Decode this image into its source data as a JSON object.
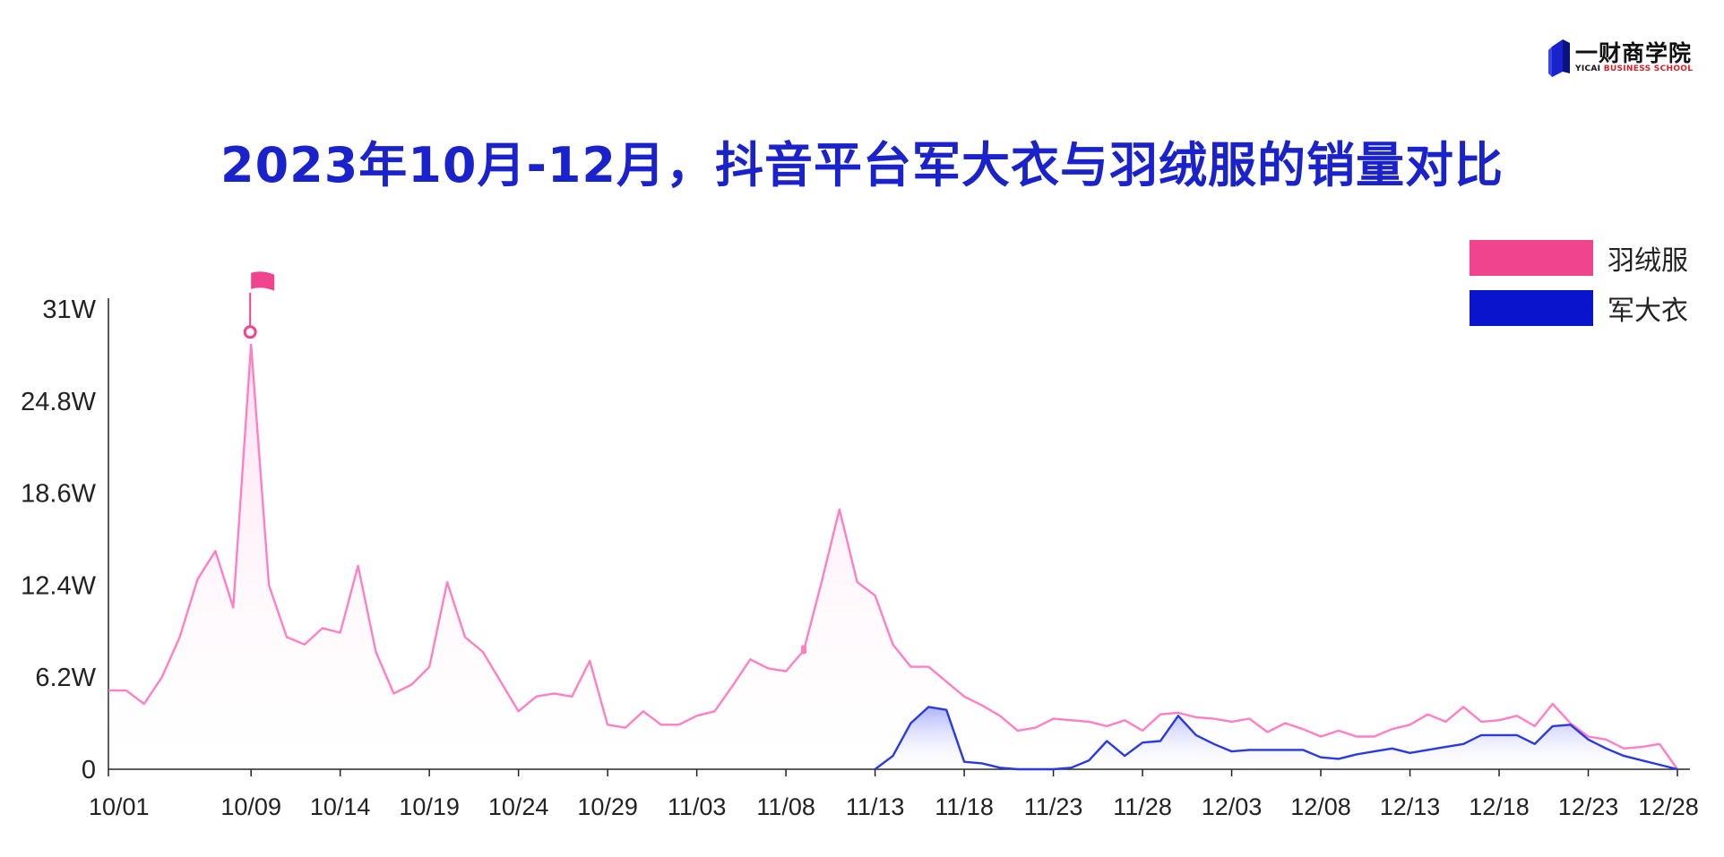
{
  "title": "2023年10月-12月，抖音平台军大衣与羽绒服的销量对比",
  "logo": {
    "name_cn": "一财商学院",
    "name_en_part1": "YICAI",
    "name_en_part2": "BUSINESS SCHOOL",
    "icon": "book-logo-icon"
  },
  "colors": {
    "down_jacket": "#f0448f",
    "down_jacket_line": "#ff7fc4",
    "army_coat": "#0a14cc",
    "army_coat_line": "#2a3ae0",
    "title": "#1a22cc"
  },
  "chart_data": {
    "type": "line",
    "title": "",
    "xlabel": "",
    "ylabel": "",
    "x_start": "10/01",
    "x_end": "12/28",
    "x_ticks": [
      "10/01",
      "10/09",
      "10/14",
      "10/19",
      "10/24",
      "10/29",
      "11/03",
      "11/08",
      "11/13",
      "11/18",
      "11/23",
      "11/28",
      "12/03",
      "12/08",
      "12/13",
      "12/18",
      "12/23",
      "12/28"
    ],
    "ylim": [
      0,
      31
    ],
    "y_ticks": [
      0,
      6.2,
      12.4,
      18.6,
      24.8,
      31
    ],
    "y_tick_labels": [
      "0",
      "6.2W",
      "12.4W",
      "18.6W",
      "24.8W",
      "31W"
    ],
    "legend_position": "top-right",
    "grid": false,
    "series": [
      {
        "name": "羽绒服",
        "x": [
          "10/01",
          "10/02",
          "10/03",
          "10/04",
          "10/05",
          "10/06",
          "10/07",
          "10/08",
          "10/09",
          "10/10",
          "10/11",
          "10/12",
          "10/13",
          "10/14",
          "10/15",
          "10/16",
          "10/17",
          "10/18",
          "10/19",
          "10/20",
          "10/21",
          "10/22",
          "10/23",
          "10/24",
          "10/25",
          "10/26",
          "10/27",
          "10/28",
          "10/29",
          "10/30",
          "10/31",
          "11/01",
          "11/02",
          "11/03",
          "11/04",
          "11/05",
          "11/06",
          "11/07",
          "11/08",
          "11/09",
          "11/10",
          "11/11",
          "11/12",
          "11/13",
          "11/14",
          "11/15",
          "11/16",
          "11/17",
          "11/18",
          "11/19",
          "11/20",
          "11/21",
          "11/22",
          "11/23",
          "11/24",
          "11/25",
          "11/26",
          "11/27",
          "11/28",
          "11/29",
          "11/30",
          "12/01",
          "12/02",
          "12/03",
          "12/04",
          "12/05",
          "12/06",
          "12/07",
          "12/08",
          "12/09",
          "12/10",
          "12/11",
          "12/12",
          "12/13",
          "12/14",
          "12/15",
          "12/16",
          "12/17",
          "12/18",
          "12/19",
          "12/20",
          "12/21",
          "12/22",
          "12/23",
          "12/24",
          "12/25",
          "12/26",
          "12/27",
          "12/28"
        ],
        "values": [
          5.3,
          5.3,
          4.4,
          6.2,
          8.9,
          12.8,
          14.7,
          10.9,
          28.6,
          12.4,
          8.9,
          8.4,
          9.5,
          9.2,
          13.7,
          7.9,
          5.1,
          5.7,
          6.9,
          12.6,
          8.9,
          7.9,
          5.9,
          3.9,
          4.9,
          5.1,
          4.9,
          7.3,
          3.0,
          2.8,
          3.9,
          3.0,
          3.0,
          3.6,
          3.9,
          5.6,
          7.4,
          6.8,
          6.6,
          8.0,
          12.6,
          17.5,
          12.6,
          11.7,
          8.4,
          6.9,
          6.9,
          5.9,
          4.9,
          4.3,
          3.6,
          2.6,
          2.8,
          3.4,
          3.3,
          3.2,
          2.9,
          3.3,
          2.6,
          3.7,
          3.8,
          3.5,
          3.4,
          3.2,
          3.4,
          2.5,
          3.1,
          2.7,
          2.2,
          2.6,
          2.2,
          2.2,
          2.7,
          3.0,
          3.7,
          3.2,
          4.2,
          3.2,
          3.3,
          3.6,
          2.9,
          4.4,
          3.1,
          2.2,
          2.0,
          1.4,
          1.5,
          1.7,
          0.0
        ]
      },
      {
        "name": "军大衣",
        "x": [
          "11/13",
          "11/14",
          "11/15",
          "11/16",
          "11/17",
          "11/18",
          "11/19",
          "11/20",
          "11/21",
          "11/22",
          "11/23",
          "11/24",
          "11/25",
          "11/26",
          "11/27",
          "11/28",
          "11/29",
          "11/30",
          "12/01",
          "12/02",
          "12/03",
          "12/04",
          "12/05",
          "12/06",
          "12/07",
          "12/08",
          "12/09",
          "12/10",
          "12/11",
          "12/12",
          "12/13",
          "12/14",
          "12/15",
          "12/16",
          "12/17",
          "12/18",
          "12/19",
          "12/20",
          "12/21",
          "12/22",
          "12/23",
          "12/24",
          "12/25",
          "12/26",
          "12/27",
          "12/28"
        ],
        "values": [
          0.0,
          0.9,
          3.1,
          4.2,
          4.0,
          0.5,
          0.4,
          0.1,
          0.0,
          0.0,
          0.0,
          0.1,
          0.6,
          1.9,
          0.9,
          1.8,
          1.9,
          3.6,
          2.3,
          1.7,
          1.2,
          1.3,
          1.3,
          1.3,
          1.3,
          0.8,
          0.7,
          1.0,
          1.2,
          1.4,
          1.1,
          1.3,
          1.5,
          1.7,
          2.3,
          2.3,
          2.3,
          1.7,
          2.9,
          3.0,
          2.0,
          1.4,
          0.9,
          0.6,
          0.3,
          0.0
        ]
      }
    ],
    "annotations": [
      {
        "type": "flag-marker",
        "series": "羽绒服",
        "x": "10/09",
        "value": 28.6
      },
      {
        "type": "small-marker",
        "series": "羽绒服",
        "x": "11/09",
        "value": 8.0
      }
    ]
  }
}
